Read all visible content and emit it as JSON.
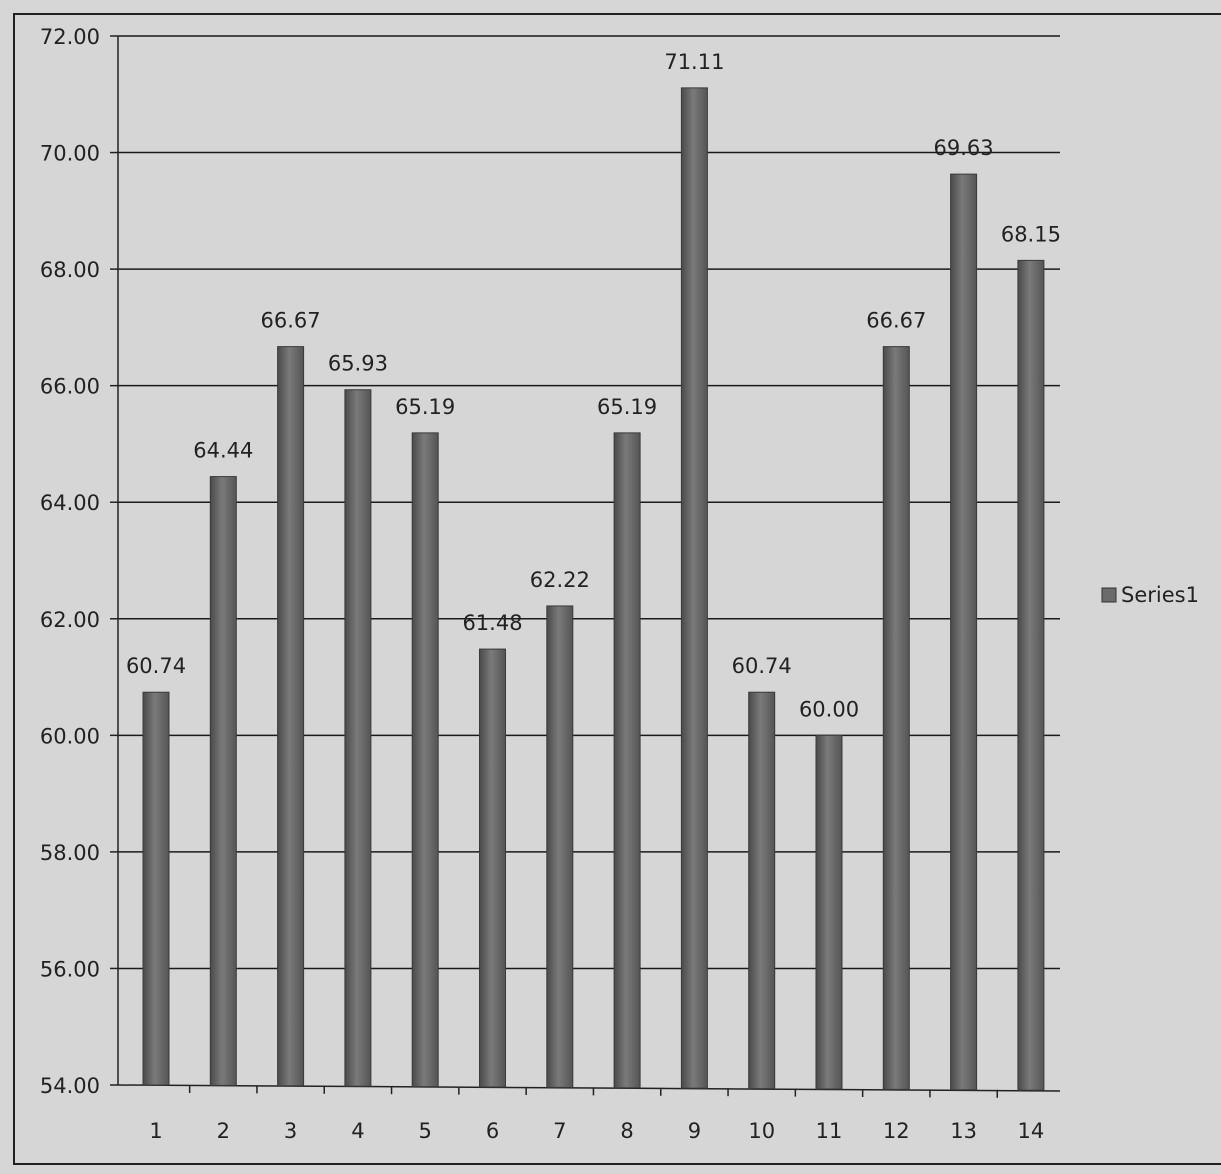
{
  "chart_data": {
    "type": "bar",
    "categories": [
      "1",
      "2",
      "3",
      "4",
      "5",
      "6",
      "7",
      "8",
      "9",
      "10",
      "11",
      "12",
      "13",
      "14"
    ],
    "series": [
      {
        "name": "Series1",
        "values": [
          60.74,
          64.44,
          66.67,
          65.93,
          65.19,
          61.48,
          62.22,
          65.19,
          71.11,
          60.74,
          60.0,
          66.67,
          69.63,
          68.15
        ],
        "value_labels": [
          "60.74",
          "64.44",
          "66.67",
          "65.93",
          "65.19",
          "61.48",
          "62.22",
          "65.19",
          "71.11",
          "60.74",
          "60.00",
          "66.67",
          "69.63",
          "68.15"
        ]
      }
    ],
    "y_ticks": [
      "54.00",
      "56.00",
      "58.00",
      "60.00",
      "62.00",
      "64.00",
      "66.00",
      "68.00",
      "70.00",
      "72.00"
    ],
    "ylim": [
      54,
      72
    ],
    "grid": true,
    "legend_position": "right",
    "colors": {
      "bar": "#6b6b6b",
      "gridline": "#1a1a1a",
      "background": "#d9d9d9"
    }
  }
}
